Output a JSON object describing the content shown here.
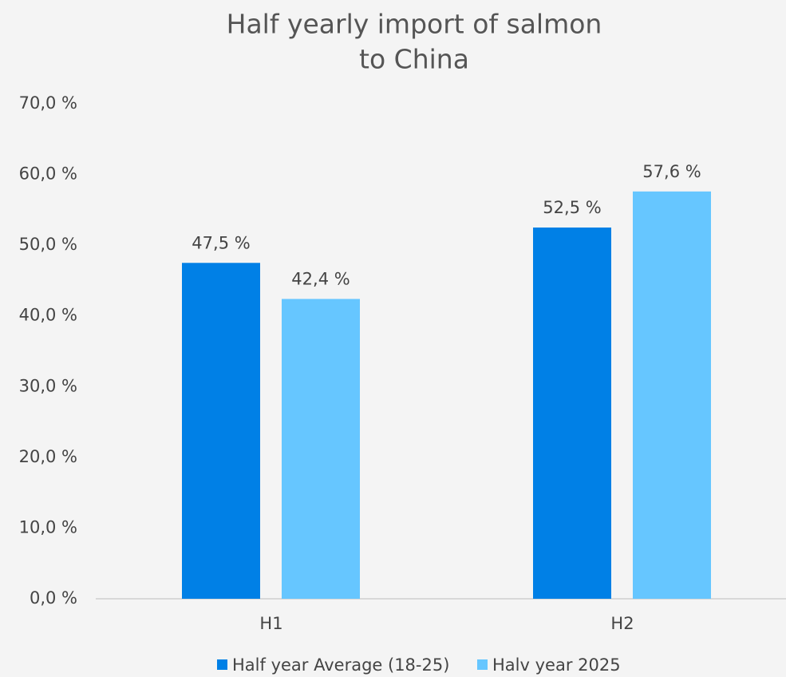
{
  "chart_data": {
    "type": "bar",
    "title": [
      "Half yearly import of salmon",
      "to China"
    ],
    "categories": [
      "H1",
      "H2"
    ],
    "series": [
      {
        "name": "Half year Average (18-25)",
        "color": "#0080e6",
        "values": [
          47.5,
          52.5
        ],
        "value_labels": [
          "47,5 %",
          "52,5 %"
        ]
      },
      {
        "name": "Halv year 2025",
        "color": "#66c6ff",
        "values": [
          42.4,
          57.6
        ],
        "value_labels": [
          "42,4 %",
          "57,6 %"
        ]
      }
    ],
    "ylim": [
      0,
      70
    ],
    "yticks": [
      {
        "value": 0,
        "label": "0,0 %"
      },
      {
        "value": 10,
        "label": "10,0 %"
      },
      {
        "value": 20,
        "label": "20,0 %"
      },
      {
        "value": 30,
        "label": "30,0 %"
      },
      {
        "value": 40,
        "label": "40,0 %"
      },
      {
        "value": 50,
        "label": "50,0 %"
      },
      {
        "value": 60,
        "label": "60,0 %"
      },
      {
        "value": 70,
        "label": "70,0 %"
      }
    ],
    "grid": false,
    "legend": "bottom"
  }
}
